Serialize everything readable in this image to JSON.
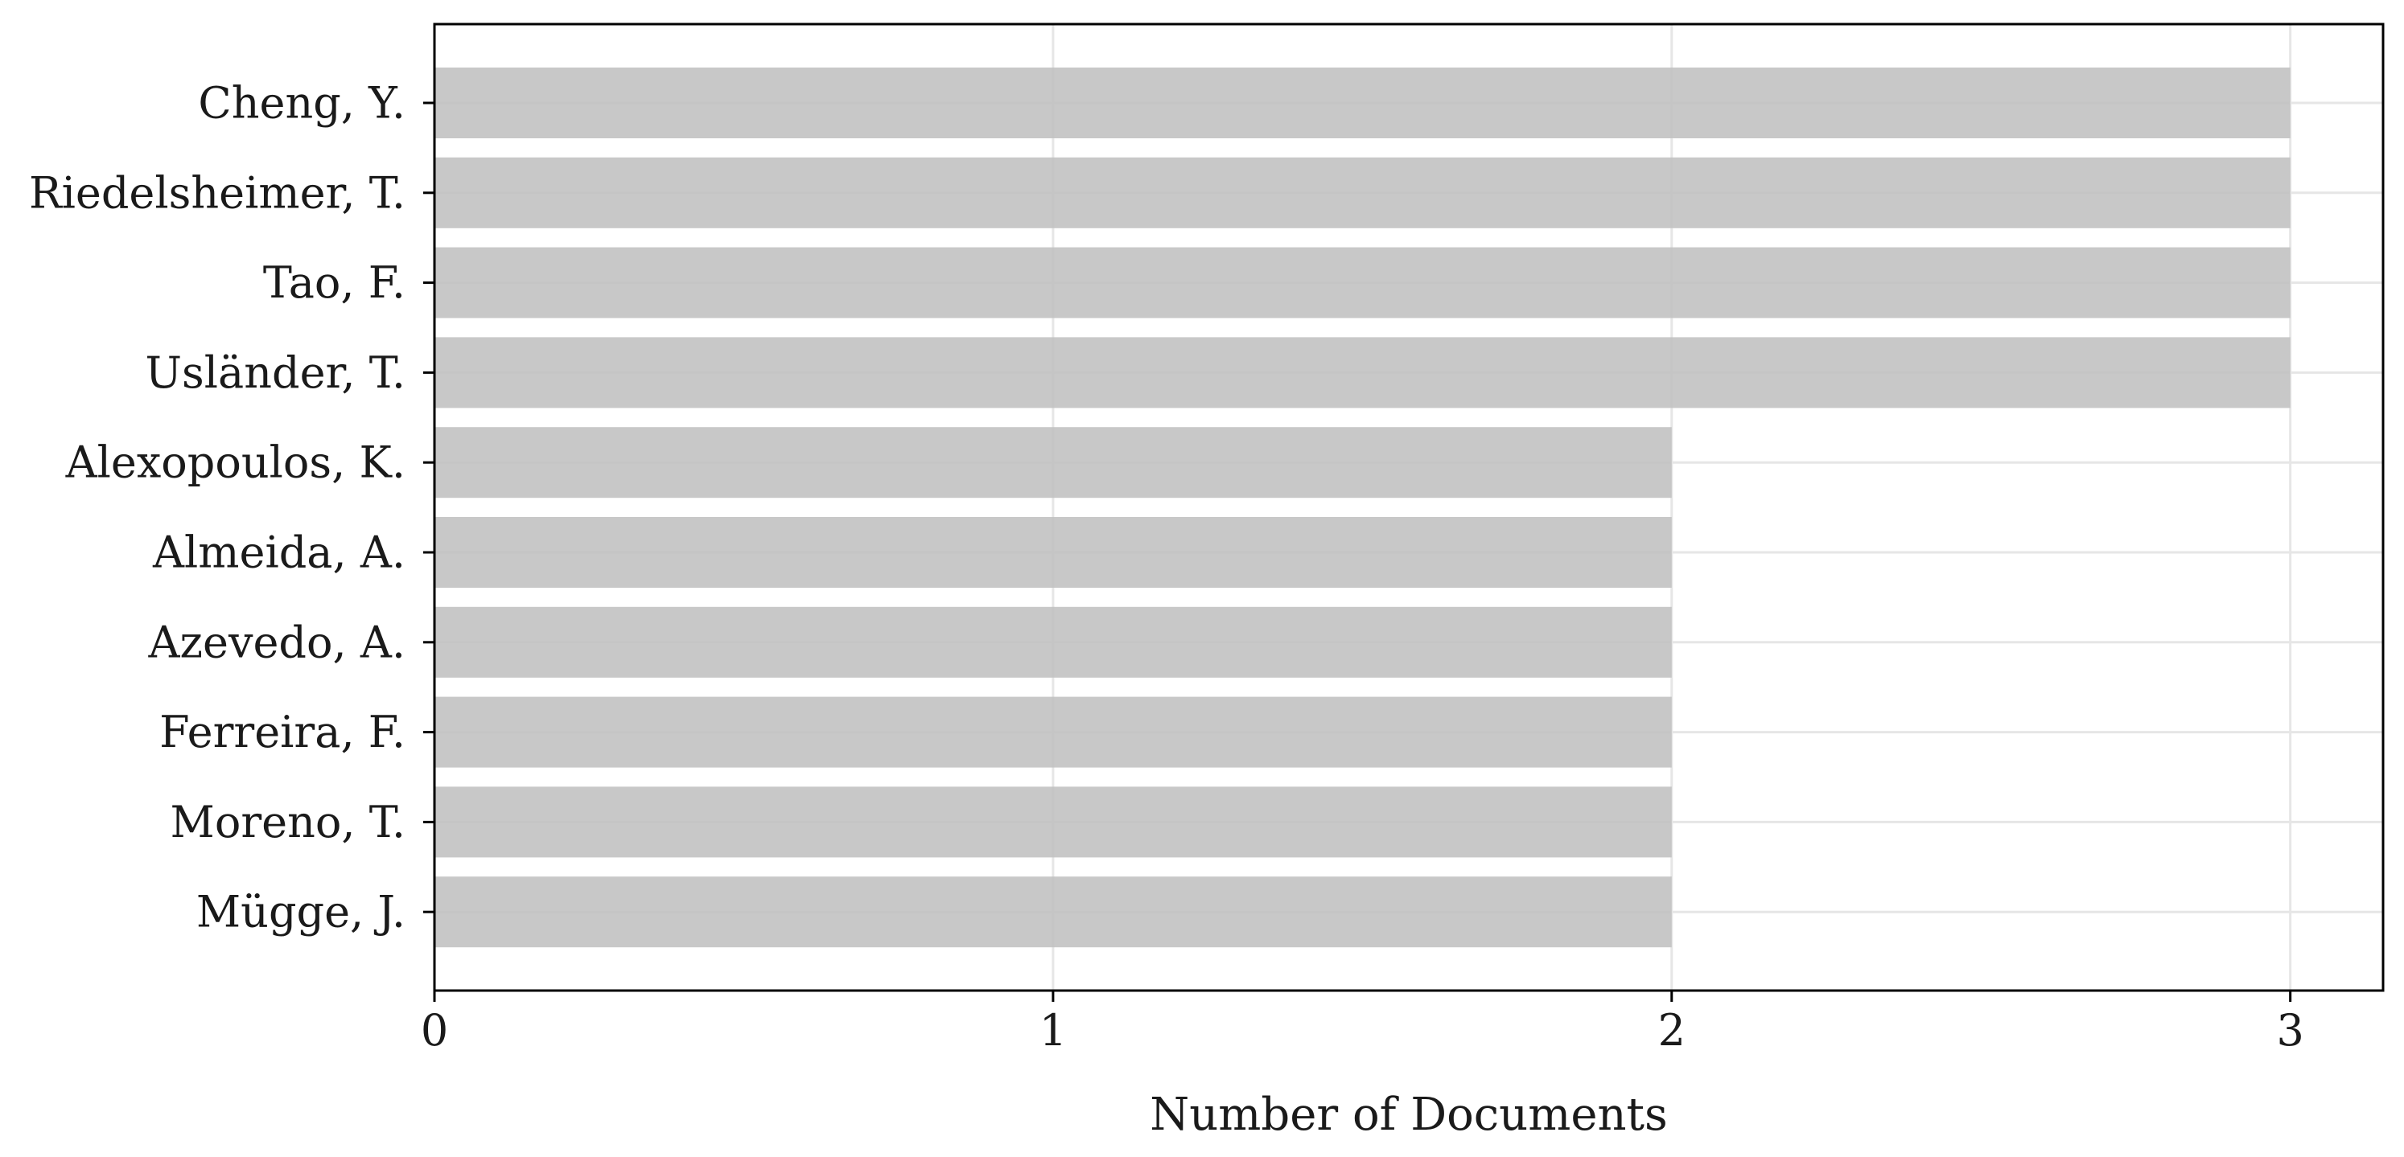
{
  "chart_data": {
    "type": "bar",
    "orientation": "horizontal",
    "categories": [
      "Cheng, Y.",
      "Riedelsheimer, T.",
      "Tao, F.",
      "Usländer, T.",
      "Alexopoulos, K.",
      "Almeida, A.",
      "Azevedo, A.",
      "Ferreira, F.",
      "Moreno, T.",
      "Mügge, J."
    ],
    "values": [
      3,
      3,
      3,
      3,
      2,
      2,
      2,
      2,
      2,
      2
    ],
    "xlabel": "Number of Documents",
    "ylabel": "",
    "title": "",
    "xlim": [
      0,
      3.15
    ],
    "xticks": [
      "0",
      "1",
      "2",
      "3"
    ],
    "grid": true,
    "colors": {
      "bar": "#c0c0c0",
      "grid": "#e6e6e6",
      "axis": "#000000",
      "text": "#1a1a1a"
    }
  }
}
